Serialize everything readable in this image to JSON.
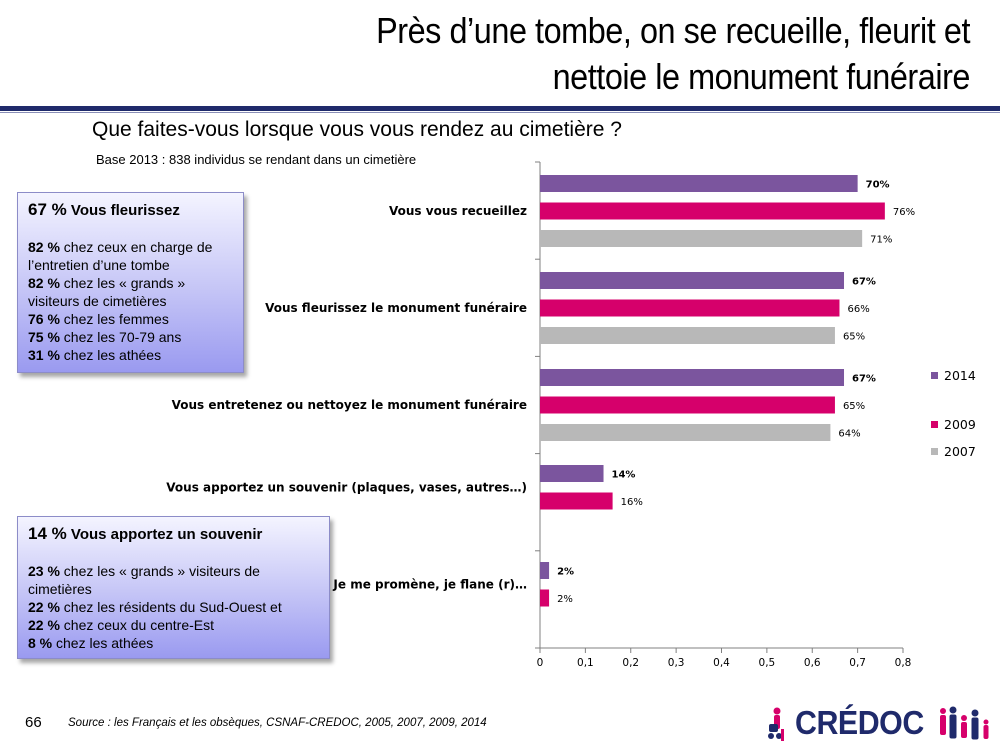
{
  "title": {
    "line1": "Près d’une tombe, on se recueille, fleurit et",
    "line2": "nettoie le monument funéraire"
  },
  "subtitle": "Que faites-vous lorsque vous vous rendez au cimetière ?",
  "base_note": "Base 2013 : 838 individus se rendant dans un cimetière",
  "callout_1": {
    "head_pct": "67 %",
    "head_text": "Vous fleurissez",
    "lines": [
      {
        "pct": "82 %",
        "text": " chez ceux en charge de l’entretien d’une tombe"
      },
      {
        "pct": "82 %",
        "text": " chez les « grands » visiteurs de cimetières"
      },
      {
        "pct": "76 %",
        "text": " chez les femmes"
      },
      {
        "pct": "75 %",
        "text": " chez les 70-79 ans"
      },
      {
        "pct": "31 %",
        "text": " chez les athées"
      }
    ]
  },
  "callout_2": {
    "head_pct": "14 %",
    "head_text": "Vous apportez un souvenir",
    "lines": [
      {
        "pct": "23 %",
        "text": " chez les « grands » visiteurs de cimetières"
      },
      {
        "pct": "22 %",
        "text": " chez les résidents du Sud-Ouest et"
      },
      {
        "pct": "22 %",
        "text": " chez ceux  du centre-Est"
      },
      {
        "pct": "8 %",
        "text": " chez les athées"
      }
    ]
  },
  "chart_data": {
    "type": "bar",
    "orientation": "horizontal",
    "categories": [
      "Vous vous recueillez",
      "Vous fleurissez le monument funéraire",
      "Vous entretenez ou nettoyez le monument funéraire",
      "Vous apportez un souvenir (plaques, vases, autres…)",
      "Je me promène, je flane (r)…"
    ],
    "series": [
      {
        "name": "2014",
        "values": [
          0.7,
          0.67,
          0.67,
          0.14,
          0.02
        ],
        "labels": [
          "70%",
          "67%",
          "67%",
          "14%",
          "2%"
        ]
      },
      {
        "name": "2009",
        "values": [
          0.76,
          0.66,
          0.65,
          0.16,
          0.02
        ],
        "labels": [
          "76%",
          "66%",
          "65%",
          "16%",
          "2%"
        ]
      },
      {
        "name": "2007",
        "values": [
          0.71,
          0.65,
          0.64,
          null,
          null
        ],
        "labels": [
          "71%",
          "65%",
          "64%",
          "",
          ""
        ]
      }
    ],
    "xlim": [
      0,
      0.8
    ],
    "xticks": [
      "0",
      "0,1",
      "0,2",
      "0,3",
      "0,4",
      "0,5",
      "0,6",
      "0,7",
      "0,8"
    ],
    "grid": false,
    "legend": "right"
  },
  "colors": {
    "series_2014": "#7b559e",
    "series_2009": "#d6006b",
    "series_2007": "#b8b8b8",
    "title_rule": "#1f2a6b",
    "logo_navy": "#1f2a6b",
    "logo_pink": "#d6006b"
  },
  "footer": {
    "page_number": "66",
    "source": "Source : les Français et les obsèques, CSNAF-CREDOC, 2005, 2007, 2009, 2014"
  },
  "logo": {
    "text": "CRÉDOC",
    "icon": "family-figures-icon"
  }
}
